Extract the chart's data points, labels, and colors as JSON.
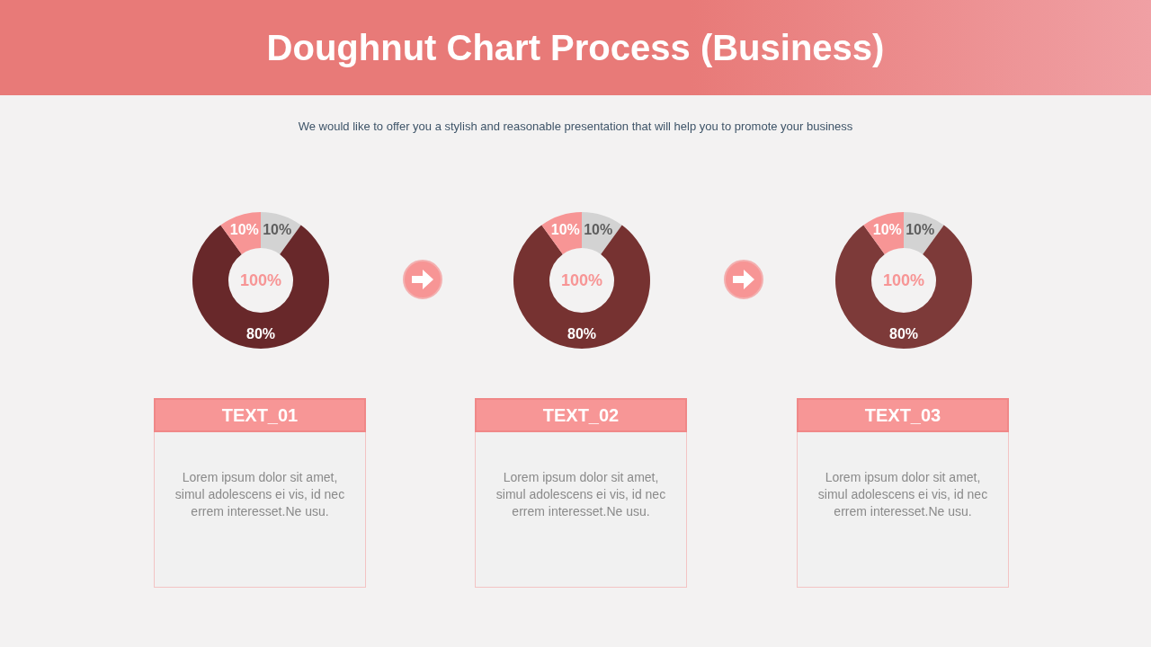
{
  "chart_data": [
    {
      "type": "donut",
      "title": "Doughnut Chart Process (Business)",
      "subtitle": "We would like to offer you a stylish and reasonable presentation that will help you to promote your business",
      "categories": [
        null,
        null,
        null
      ],
      "values": [
        10,
        80,
        10
      ],
      "value_labels": [
        "10%",
        "80%",
        "10%"
      ],
      "colors": [
        "#d3d3d3",
        "#68282a",
        "#f79595"
      ],
      "annotations": [
        "100%",
        "TEXT_01",
        "Lorem ipsum dolor sit amet, simul adolescens ei vis, id nec errem interesset.Ne usu."
      ]
    },
    {
      "type": "donut",
      "categories": [
        null,
        null,
        null
      ],
      "values": [
        10,
        80,
        10
      ],
      "value_labels": [
        "10%",
        "80%",
        "10%"
      ],
      "colors": [
        "#d3d3d3",
        "#763231",
        "#f79595"
      ],
      "annotations": [
        "100%",
        "TEXT_02",
        "Lorem ipsum dolor sit amet, simul adolescens ei vis, id nec errem interesset.Ne usu."
      ]
    },
    {
      "type": "donut",
      "categories": [
        null,
        null,
        null
      ],
      "values": [
        10,
        80,
        10
      ],
      "value_labels": [
        "10%",
        "80%",
        "10%"
      ],
      "colors": [
        "#d3d3d3",
        "#7d3a39",
        "#f79595"
      ],
      "annotations": [
        "100%",
        "TEXT_03",
        "Lorem ipsum dolor sit amet, simul adolescens ei vis, id nec errem interesset.Ne usu."
      ]
    }
  ]
}
